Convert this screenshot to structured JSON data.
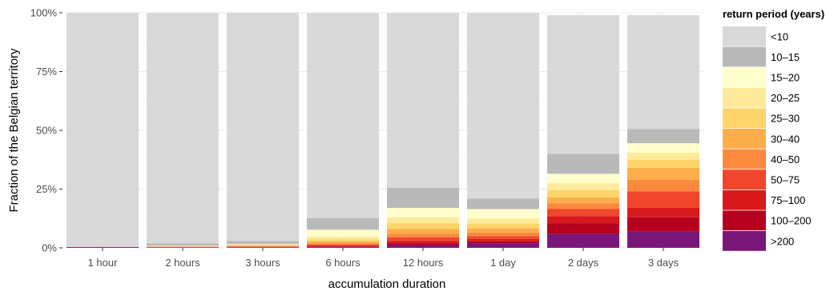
{
  "chart_data": {
    "type": "bar",
    "stacked": true,
    "xlabel": "accumulation duration",
    "ylabel": "Fraction of the Belgian territory",
    "ylim": [
      0,
      100
    ],
    "yticks": [
      0,
      25,
      50,
      75,
      100
    ],
    "ytick_labels": [
      "0%",
      "25%",
      "50%",
      "75%",
      "100%"
    ],
    "grid": true,
    "legend_position": "right",
    "legend_title": "return period (years)",
    "categories": [
      "1 hour",
      "2 hours",
      "3 hours",
      "6 hours",
      "12 hours",
      "1 day",
      "2 days",
      "3 days"
    ],
    "series": [
      {
        "name": ">200",
        "color": "#7b1779",
        "values": [
          0.3,
          0.1,
          0.1,
          0.3,
          1.2,
          2.0,
          6.0,
          7.0
        ]
      },
      {
        "name": "100–200",
        "color": "#b5001f",
        "values": [
          0.1,
          0.1,
          0.1,
          0.3,
          0.8,
          0.8,
          4.5,
          6.0
        ]
      },
      {
        "name": "75–100",
        "color": "#d7191c",
        "values": [
          0.0,
          0.1,
          0.2,
          0.3,
          1.0,
          1.0,
          3.0,
          4.0
        ]
      },
      {
        "name": "50–75",
        "color": "#f0462b",
        "values": [
          0.0,
          0.1,
          0.2,
          0.5,
          1.5,
          1.2,
          3.0,
          7.0
        ]
      },
      {
        "name": "40–50",
        "color": "#fb8a3e",
        "values": [
          0.0,
          0.1,
          0.2,
          0.6,
          1.5,
          1.5,
          2.5,
          5.0
        ]
      },
      {
        "name": "30–40",
        "color": "#fdae4b",
        "values": [
          0.0,
          0.1,
          0.2,
          0.8,
          2.0,
          1.8,
          2.5,
          5.0
        ]
      },
      {
        "name": "25–30",
        "color": "#fed46b",
        "values": [
          0.0,
          0.1,
          0.2,
          0.9,
          2.5,
          2.0,
          3.0,
          3.5
        ]
      },
      {
        "name": "20–25",
        "color": "#feea9a",
        "values": [
          0.0,
          0.1,
          0.2,
          1.0,
          2.5,
          2.2,
          3.0,
          3.0
        ]
      },
      {
        "name": "15–20",
        "color": "#ffffcc",
        "values": [
          0.0,
          0.1,
          0.2,
          3.0,
          4.0,
          4.0,
          4.0,
          4.0
        ]
      },
      {
        "name": "10–15",
        "color": "#b9b9b9",
        "values": [
          0.0,
          1.0,
          1.3,
          5.0,
          8.5,
          4.5,
          8.5,
          6.0
        ]
      },
      {
        "name": "<10",
        "color": "#d9d9d9",
        "values": [
          99.6,
          98.1,
          97.2,
          87.3,
          74.5,
          79.0,
          59.0,
          48.5
        ]
      }
    ],
    "legend_order": [
      "<10",
      "10–15",
      "15–20",
      "20–25",
      "25–30",
      "30–40",
      "40–50",
      "50–75",
      "75–100",
      "100–200",
      ">200"
    ]
  }
}
